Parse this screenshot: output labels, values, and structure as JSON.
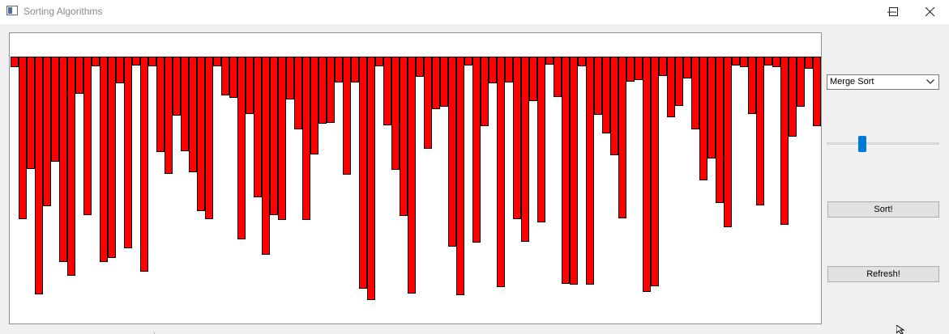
{
  "window": {
    "title": "Sorting Algorithms",
    "controls": [
      "minimize-icon",
      "maximize-icon",
      "close-icon"
    ]
  },
  "algorithm_select": {
    "selected": "Merge Sort"
  },
  "speed_slider": {
    "value": 0.3
  },
  "buttons": {
    "sort": "Sort!",
    "refresh": "Refresh!"
  },
  "colors": {
    "bar_fill": "#ff0000",
    "bar_stroke": "#000000",
    "slider": "#0078d7"
  },
  "chart_data": {
    "type": "bar",
    "orientation": "hanging-from-top",
    "values": [
      12,
      200,
      138,
      293,
      184,
      129,
      253,
      270,
      45,
      195,
      11,
      253,
      248,
      32,
      236,
      10,
      265,
      11,
      117,
      144,
      72,
      116,
      142,
      190,
      200,
      11,
      47,
      50,
      225,
      70,
      173,
      244,
      195,
      201,
      52,
      89,
      201,
      120,
      82,
      81,
      31,
      145,
      31,
      286,
      300,
      11,
      84,
      139,
      196,
      292,
      24,
      113,
      64,
      61,
      234,
      294,
      10,
      229,
      85,
      32,
      284,
      31,
      200,
      228,
      54,
      204,
      9,
      49,
      280,
      281,
      11,
      281,
      71,
      94,
      121,
      199,
      30,
      28,
      290,
      283,
      23,
      74,
      60,
      26,
      89,
      152,
      125,
      180,
      210,
      10,
      12,
      70,
      183,
      10,
      12,
      207,
      98,
      61,
      14,
      85,
      126,
      7,
      35,
      208,
      183,
      99,
      22,
      151,
      128,
      15,
      204,
      181,
      16,
      118,
      94,
      117,
      262,
      258,
      291,
      264,
      184
    ]
  }
}
